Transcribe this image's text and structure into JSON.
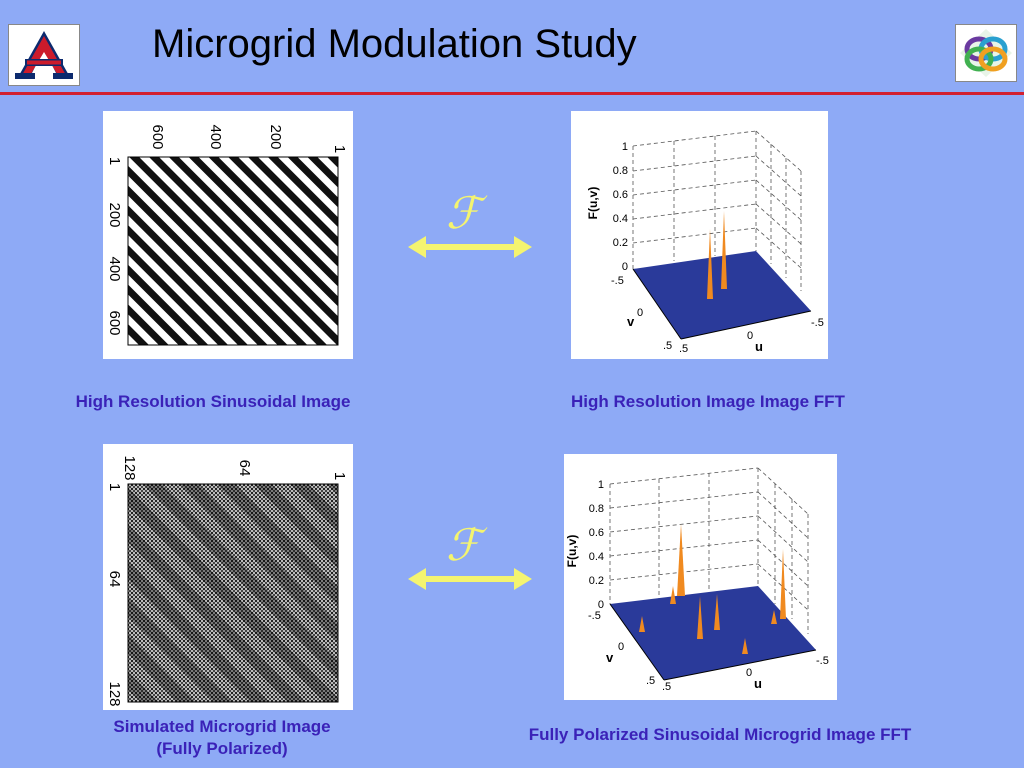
{
  "slide": {
    "title": "Microgrid Modulation Study"
  },
  "captions": {
    "top_left": "High Resolution Sinusoidal Image",
    "top_right": "High Resolution Image Image FFT",
    "bottom_left_line1": "Simulated Microgrid Image",
    "bottom_left_line2": "(Fully Polarized)",
    "bottom_right": "Fully Polarized Sinusoidal Microgrid Image FFT"
  },
  "transform_symbol": "ℱ",
  "top_image_axes": {
    "top_ticks": [
      "600",
      "400",
      "200",
      "1"
    ],
    "left_ticks": [
      "1",
      "200",
      "400",
      "600"
    ]
  },
  "bottom_image_axes": {
    "top_ticks": [
      "128",
      "64",
      "1"
    ],
    "left_ticks": [
      "1",
      "64",
      "128"
    ]
  },
  "fft_axes": {
    "z_label": "F(u,v)",
    "z_ticks": [
      "1",
      "0.8",
      "0.6",
      "0.4",
      "0.2",
      "0"
    ],
    "v_label": "v",
    "v_ticks": [
      "-.5",
      "0",
      ".5"
    ],
    "u_label": "u",
    "u_ticks": [
      ".5",
      "0",
      "-.5"
    ]
  },
  "icons": {
    "left_logo": "university-a-logo-icon",
    "right_logo": "interlocking-rings-logo-icon",
    "arrow": "double-headed-arrow-icon"
  },
  "colors": {
    "background": "#8eaaf6",
    "rule": "#d22030",
    "caption": "#3a22b8",
    "arrow": "#f4f470",
    "surface": "#2a3a9a"
  }
}
